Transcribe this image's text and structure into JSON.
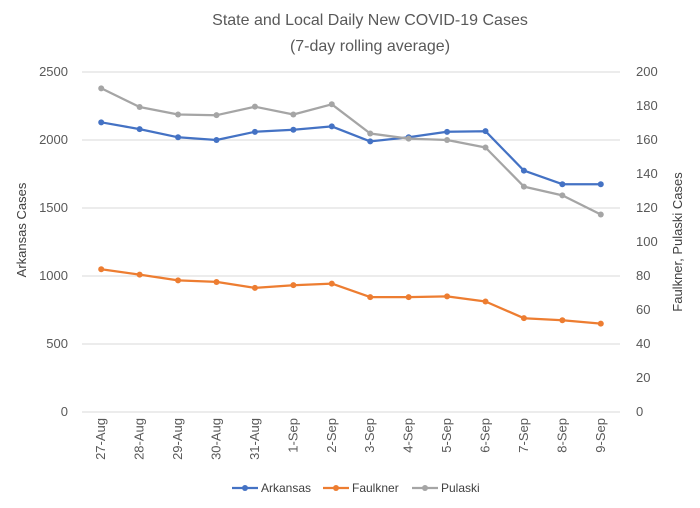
{
  "chart_data": {
    "type": "line",
    "title": "State and Local Daily New COVID-19 Cases",
    "subtitle": "(7-day rolling average)",
    "categories": [
      "27-Aug",
      "28-Aug",
      "29-Aug",
      "30-Aug",
      "31-Aug",
      "1-Sep",
      "2-Sep",
      "3-Sep",
      "4-Sep",
      "5-Sep",
      "6-Sep",
      "7-Sep",
      "8-Sep",
      "9-Sep"
    ],
    "ylabel_left": "Arkansas Cases",
    "ylabel_right": "Faulkner, Pulaski Cases",
    "ylim_left": [
      0,
      2500
    ],
    "yticks_left": [
      0,
      500,
      1000,
      1500,
      2000,
      2500
    ],
    "ylim_right": [
      0,
      200
    ],
    "yticks_right": [
      0,
      20,
      40,
      60,
      80,
      100,
      120,
      140,
      160,
      180,
      200
    ],
    "grid": true,
    "legend_position": "bottom",
    "series": [
      {
        "name": "Arkansas",
        "axis": "left",
        "color": "#4472c4",
        "values": [
          2130,
          2080,
          2020,
          2000,
          2060,
          2075,
          2100,
          1990,
          2020,
          2060,
          2065,
          1775,
          1675,
          1675
        ]
      },
      {
        "name": "Faulkner",
        "axis": "right",
        "color": "#ed7d31",
        "values": [
          84,
          80.8,
          77.4,
          76.5,
          73,
          74.6,
          75.5,
          67.6,
          67.6,
          68,
          65,
          55.2,
          54,
          52
        ]
      },
      {
        "name": "Pulaski",
        "axis": "right",
        "color": "#a5a5a5",
        "values": [
          190.4,
          179.4,
          175,
          174.6,
          179.6,
          175,
          181,
          163.8,
          160.8,
          160,
          155.6,
          132.6,
          127.4,
          116.2
        ]
      }
    ]
  }
}
